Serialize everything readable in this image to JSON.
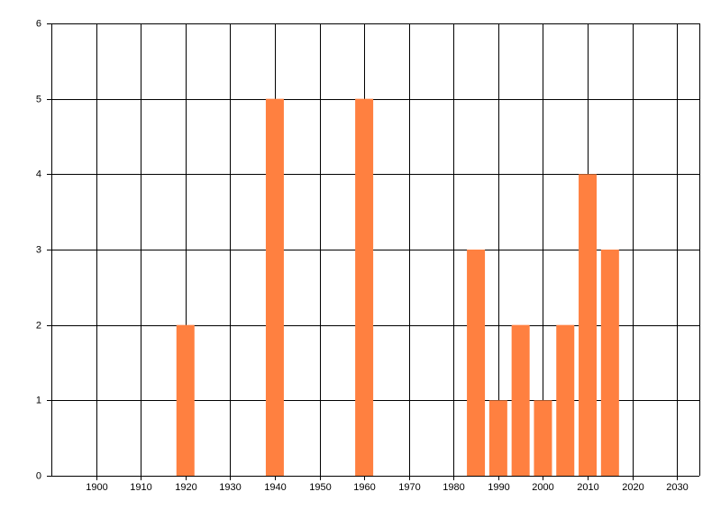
{
  "chart_data": {
    "type": "bar",
    "x": [
      1920,
      1940,
      1960,
      1985,
      1990,
      1995,
      2000,
      2005,
      2010,
      2015
    ],
    "values": [
      2,
      5,
      5,
      3,
      1,
      2,
      1,
      2,
      4,
      3
    ],
    "color": "#ff8040",
    "xlim": [
      1890,
      2035
    ],
    "xticks": [
      1900,
      1910,
      1920,
      1930,
      1940,
      1950,
      1960,
      1970,
      1980,
      1990,
      2000,
      2010,
      2020,
      2030
    ],
    "ylim": [
      0,
      6
    ],
    "yticks": [
      0,
      1,
      2,
      3,
      4,
      5,
      6
    ],
    "grid": true
  }
}
